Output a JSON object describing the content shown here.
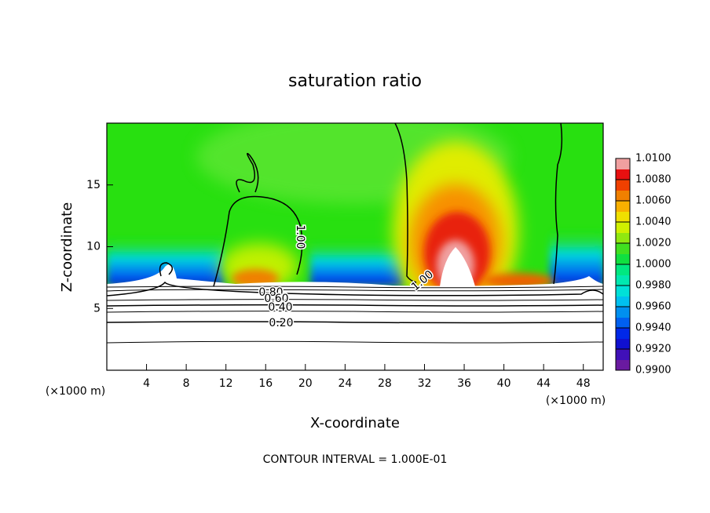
{
  "chart_data": {
    "type": "contour",
    "title": "saturation ratio",
    "x_label": "X-coordinate",
    "y_label": "Z-coordinate",
    "unit_labels": [
      "(×1000 m)",
      "(×1000 m)"
    ],
    "footer": "CONTOUR INTERVAL = 1.000E-01",
    "xlim": [
      0,
      50
    ],
    "ylim": [
      0,
      20
    ],
    "xticks": [
      4,
      8,
      12,
      16,
      20,
      24,
      28,
      32,
      36,
      40,
      44,
      48
    ],
    "yticks": [
      5,
      10,
      15
    ],
    "contour_labels": [
      "1.00",
      "1.00",
      "0.80",
      "0.60",
      "0.40",
      "0.20"
    ],
    "colorbar": {
      "lim": [
        0.99,
        1.01
      ],
      "ticks": [
        {
          "value": 0.99,
          "label": "0.9900"
        },
        {
          "value": 0.992,
          "label": "0.9920"
        },
        {
          "value": 0.994,
          "label": "0.9940"
        },
        {
          "value": 0.996,
          "label": "0.9960"
        },
        {
          "value": 0.998,
          "label": "0.9980"
        },
        {
          "value": 1.0,
          "label": "1.0000"
        },
        {
          "value": 1.002,
          "label": "1.0020"
        },
        {
          "value": 1.004,
          "label": "1.0040"
        },
        {
          "value": 1.006,
          "label": "1.0060"
        },
        {
          "value": 1.008,
          "label": "1.0080"
        },
        {
          "value": 1.01,
          "label": "1.0100"
        }
      ],
      "colors": [
        "#6a1aa0",
        "#4010b8",
        "#1010d0",
        "#0028e8",
        "#0060f0",
        "#0090f0",
        "#00c0f0",
        "#00e0d8",
        "#00e8b0",
        "#00e880",
        "#10e040",
        "#40e020",
        "#90e810",
        "#d0f000",
        "#f0e000",
        "#f8b000",
        "#f08000",
        "#f04000",
        "#e81010",
        "#f0a0a0"
      ]
    }
  }
}
